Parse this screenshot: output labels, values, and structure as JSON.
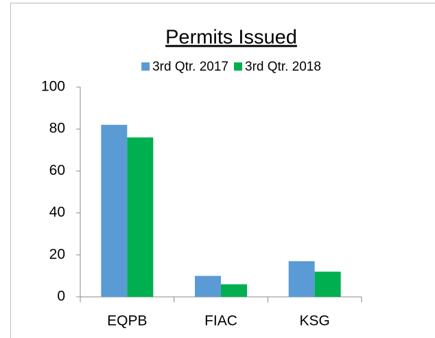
{
  "chart_data": {
    "type": "bar",
    "title": "Permits Issued",
    "categories": [
      "EQPB",
      "FIAC",
      "KSG"
    ],
    "series": [
      {
        "name": "3rd Qtr. 2017",
        "color": "#5b9bd5",
        "values": [
          82,
          10,
          17
        ]
      },
      {
        "name": "3rd Qtr. 2018",
        "color": "#00b050",
        "values": [
          76,
          6,
          12
        ]
      }
    ],
    "ylim": [
      0,
      100
    ],
    "yticks": [
      0,
      20,
      40,
      60,
      80,
      100
    ],
    "grid": false,
    "legend": "top"
  }
}
